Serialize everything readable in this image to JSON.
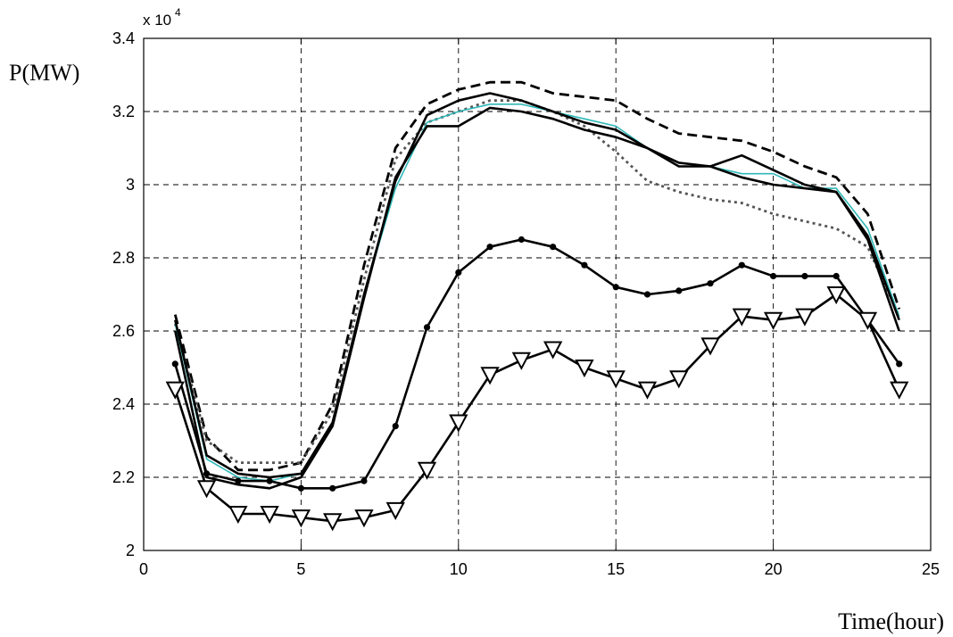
{
  "chart_data": {
    "type": "line",
    "ylabel": "P(MW)",
    "xlabel": "Time(hour)",
    "y_multiplier": "x 10",
    "y_multiplier_exp": "4",
    "xlim": [
      0,
      25
    ],
    "ylim": [
      2.0,
      3.4
    ],
    "x_ticks": [
      0,
      5,
      10,
      15,
      20,
      25
    ],
    "y_ticks": [
      2,
      2.2,
      2.4,
      2.6,
      2.8,
      3,
      3.2,
      3.4
    ],
    "x_tick_labels": [
      "0",
      "5",
      "10",
      "15",
      "20",
      "25"
    ],
    "y_tick_labels": [
      "2",
      "2.2",
      "2.4",
      "2.6",
      "2.8",
      "3",
      "3.2",
      "3.4"
    ],
    "grid": true,
    "x": [
      1,
      2,
      3,
      4,
      5,
      6,
      7,
      8,
      9,
      10,
      11,
      12,
      13,
      14,
      15,
      16,
      17,
      18,
      19,
      20,
      21,
      22,
      23,
      24
    ],
    "series": [
      {
        "style": "dashed",
        "color": "#000000",
        "values": [
          2.645,
          2.31,
          2.22,
          2.22,
          2.24,
          2.4,
          2.78,
          3.1,
          3.22,
          3.26,
          3.28,
          3.28,
          3.25,
          3.24,
          3.23,
          3.18,
          3.14,
          3.13,
          3.12,
          3.09,
          3.05,
          3.02,
          2.92,
          2.66
        ]
      },
      {
        "style": "dotted",
        "color": "#555555",
        "values": [
          2.62,
          2.3,
          2.24,
          2.24,
          2.24,
          2.38,
          2.74,
          3.07,
          3.17,
          3.2,
          3.23,
          3.23,
          3.2,
          3.16,
          3.09,
          3.01,
          2.98,
          2.96,
          2.95,
          2.92,
          2.9,
          2.88,
          2.83,
          2.64
        ]
      },
      {
        "style": "solid",
        "color": "#2fb8b8",
        "values": [
          2.62,
          2.25,
          2.2,
          2.19,
          2.21,
          2.35,
          2.7,
          2.99,
          3.17,
          3.2,
          3.22,
          3.22,
          3.2,
          3.18,
          3.16,
          3.1,
          3.05,
          3.05,
          3.03,
          3.03,
          2.99,
          2.99,
          2.88,
          2.64
        ]
      },
      {
        "style": "solid",
        "color": "#000000",
        "values": [
          2.63,
          2.26,
          2.21,
          2.2,
          2.21,
          2.35,
          2.7,
          3.01,
          3.19,
          3.23,
          3.25,
          3.23,
          3.2,
          3.17,
          3.15,
          3.1,
          3.05,
          3.05,
          3.02,
          3.0,
          2.99,
          2.98,
          2.86,
          2.63
        ]
      },
      {
        "style": "solid",
        "color": "#000000",
        "values": [
          2.6,
          2.2,
          2.18,
          2.17,
          2.2,
          2.34,
          2.69,
          3.02,
          3.16,
          3.16,
          3.21,
          3.2,
          3.18,
          3.15,
          3.13,
          3.1,
          3.06,
          3.05,
          3.08,
          3.04,
          3.0,
          2.98,
          2.85,
          2.6
        ]
      },
      {
        "style": "solid",
        "color": "#000000",
        "marker": "dot",
        "values": [
          2.51,
          2.21,
          2.19,
          2.19,
          2.17,
          2.17,
          2.19,
          2.34,
          2.61,
          2.76,
          2.83,
          2.85,
          2.83,
          2.78,
          2.72,
          2.7,
          2.71,
          2.73,
          2.78,
          2.75,
          2.75,
          2.75,
          2.63,
          2.51
        ]
      },
      {
        "style": "solid",
        "color": "#000000",
        "marker": "triangle-down",
        "values": [
          2.44,
          2.17,
          2.1,
          2.1,
          2.09,
          2.08,
          2.09,
          2.11,
          2.22,
          2.35,
          2.48,
          2.52,
          2.55,
          2.5,
          2.47,
          2.44,
          2.47,
          2.56,
          2.64,
          2.63,
          2.64,
          2.7,
          2.63,
          2.44
        ]
      }
    ]
  }
}
